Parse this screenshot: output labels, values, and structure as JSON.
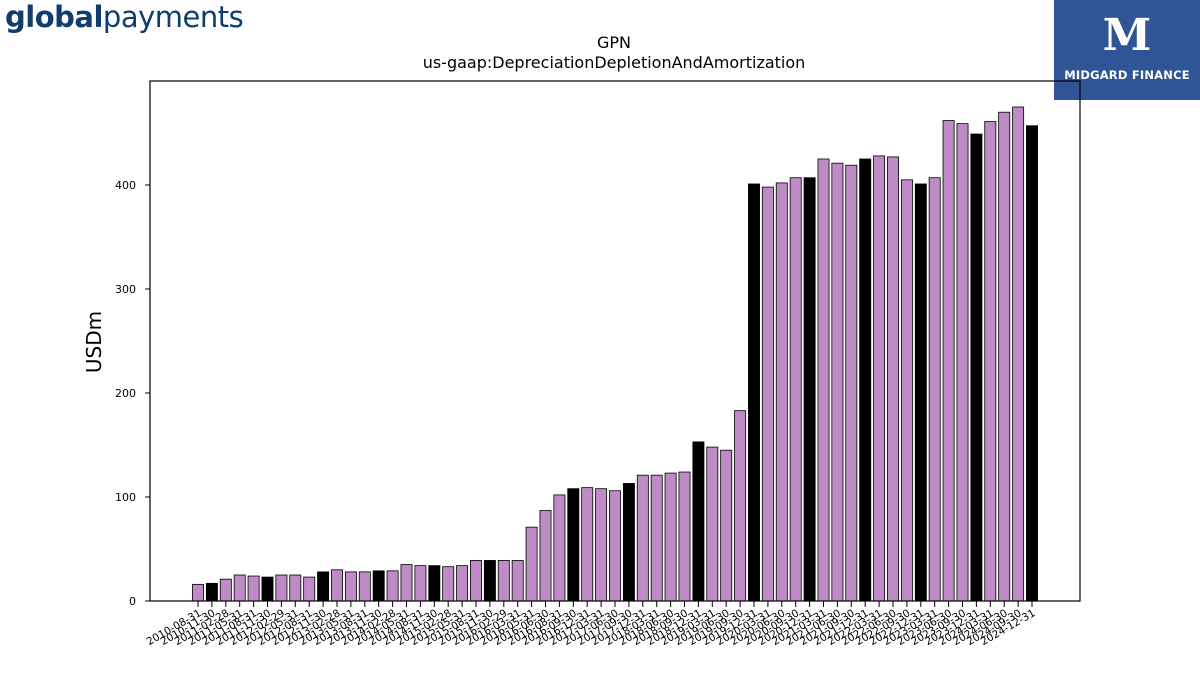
{
  "logos": {
    "left_bold": "global",
    "left_regular": "payments",
    "right_mark": "M",
    "right_name": "MIDGARD FINANCE"
  },
  "chart_data": {
    "type": "bar",
    "title": "GPN",
    "subtitle": "us-gaap:DepreciationDepletionAndAmortization",
    "ylabel": "USDm",
    "xlabel": "",
    "ylim": [
      0,
      500
    ],
    "yticks": [
      0,
      100,
      200,
      300,
      400
    ],
    "grid": false,
    "colors": {
      "quarter": "#bf8bc7",
      "annual": "#000000",
      "edge": "#000000"
    },
    "categories": [
      "2010-08-31",
      "2010-11-30",
      "2011-02-28",
      "2011-05-31",
      "2011-08-31",
      "2011-11-30",
      "2012-02-29",
      "2012-05-31",
      "2012-08-31",
      "2012-11-30",
      "2013-02-28",
      "2013-05-31",
      "2013-08-31",
      "2013-11-30",
      "2014-02-28",
      "2014-05-31",
      "2014-08-31",
      "2014-11-30",
      "2015-02-28",
      "2015-05-31",
      "2015-08-31",
      "2015-11-30",
      "2016-02-29",
      "2016-03-31",
      "2016-05-31",
      "2016-06-30",
      "2016-08-31",
      "2016-09-30",
      "2016-12-31",
      "2017-03-31",
      "2017-06-30",
      "2017-09-30",
      "2017-12-31",
      "2018-03-31",
      "2018-06-30",
      "2018-09-30",
      "2018-12-31",
      "2019-03-31",
      "2019-06-30",
      "2019-09-30",
      "2019-12-31",
      "2020-03-31",
      "2020-06-30",
      "2020-09-30",
      "2020-12-31",
      "2021-03-31",
      "2021-06-30",
      "2021-09-30",
      "2021-12-31",
      "2022-03-31",
      "2022-06-30",
      "2022-09-30",
      "2022-12-31",
      "2023-03-31",
      "2023-06-30",
      "2023-09-30",
      "2023-12-31",
      "2024-03-31",
      "2024-06-30",
      "2024-09-30",
      "2024-12-31"
    ],
    "tick_labels": [
      "2010-08-31",
      "2010-11-30",
      "2011-02-28",
      "2011-05-31",
      "2011-08-31",
      "2011-11-30",
      "2012-02-29",
      "2012-05-31",
      "2012-08-31",
      "2012-11-30",
      "2013-02-28",
      "2013-05-31",
      "2013-08-31",
      "2013-11-30",
      "2014-02-28",
      "2014-05-31",
      "2014-08-31",
      "2014-11-30",
      "2015-02-28",
      "2015-05-31",
      "2015-08-31",
      "2015-11-30",
      "2016-02-29",
      "2016-03-31",
      "2016-05-31",
      "2016-06-30",
      "2016-08-31",
      "2016-09-30",
      "2016-12-31",
      "2017-03-31",
      "2017-06-30",
      "2017-09-30",
      "2017-12-31",
      "2018-03-31",
      "2018-06-30",
      "2018-09-30",
      "2018-12-31",
      "2019-03-31",
      "2019-06-30",
      "2019-09-30",
      "2019-12-31",
      "2020-03-31",
      "2020-06-30",
      "2020-09-30",
      "2020-12-31",
      "2021-03-31",
      "2021-06-30",
      "2021-09-30",
      "2021-12-31",
      "2022-03-31",
      "2022-06-30",
      "2022-09-30",
      "2022-12-31",
      "2023-03-31",
      "2023-06-30",
      "2023-09-30",
      "2023-12-31",
      "2024-03-31",
      "2024-06-30",
      "2024-09-30",
      "2024-12-31"
    ],
    "values": [
      16,
      17,
      21,
      25,
      24,
      23,
      25,
      25,
      23,
      28,
      30,
      28,
      28,
      29,
      29,
      35,
      34,
      34,
      33,
      34,
      39,
      39,
      39,
      39,
      71,
      87,
      102,
      108,
      109,
      108,
      106,
      113,
      121,
      121,
      123,
      124,
      153,
      148,
      145,
      183,
      401,
      398,
      402,
      407,
      407,
      425,
      421,
      419,
      425,
      428,
      427,
      405,
      401,
      407,
      462,
      459,
      449,
      461,
      470,
      475,
      457
    ],
    "annual_flags": [
      0,
      1,
      0,
      0,
      0,
      1,
      0,
      0,
      0,
      1,
      0,
      0,
      0,
      1,
      0,
      0,
      0,
      1,
      0,
      0,
      0,
      1,
      0,
      0,
      0,
      0,
      0,
      1,
      0,
      0,
      0,
      1,
      0,
      0,
      0,
      0,
      1,
      0,
      0,
      0,
      1,
      0,
      0,
      0,
      1,
      0,
      0,
      0,
      1,
      0,
      0,
      0,
      1,
      0,
      0,
      0,
      1,
      0,
      0,
      0,
      1
    ]
  }
}
